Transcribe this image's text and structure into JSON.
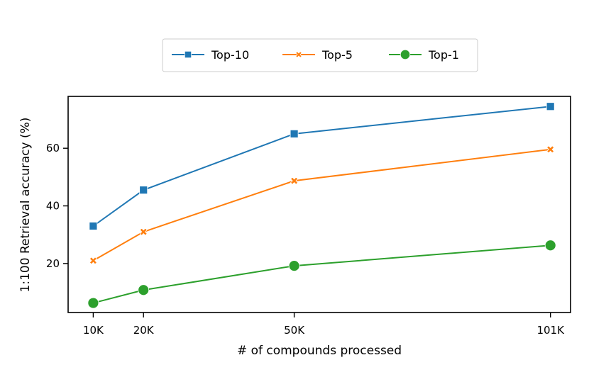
{
  "chart_data": {
    "type": "line",
    "xlabel": "# of compounds processed",
    "ylabel": "1:100 Retrieval accuracy (%)",
    "x_values": [
      10,
      20,
      50,
      101
    ],
    "x_tick_labels": [
      "10K",
      "20K",
      "50K",
      "101K"
    ],
    "x_unit": "thousand compounds",
    "xlim": [
      5,
      105
    ],
    "ylim": [
      3,
      78
    ],
    "y_ticks": [
      20,
      40,
      60
    ],
    "grid": false,
    "legend_position": "top-center",
    "series": [
      {
        "name": "Top-10",
        "marker": "square",
        "color": "#1f77b4",
        "values": [
          33.0,
          45.5,
          65.0,
          74.5
        ]
      },
      {
        "name": "Top-5",
        "marker": "x",
        "color": "#ff7f0e",
        "values": [
          21.0,
          31.0,
          48.7,
          59.6
        ]
      },
      {
        "name": "Top-1",
        "marker": "circle",
        "color": "#2ca02c",
        "values": [
          6.3,
          10.8,
          19.2,
          26.3
        ]
      }
    ]
  }
}
